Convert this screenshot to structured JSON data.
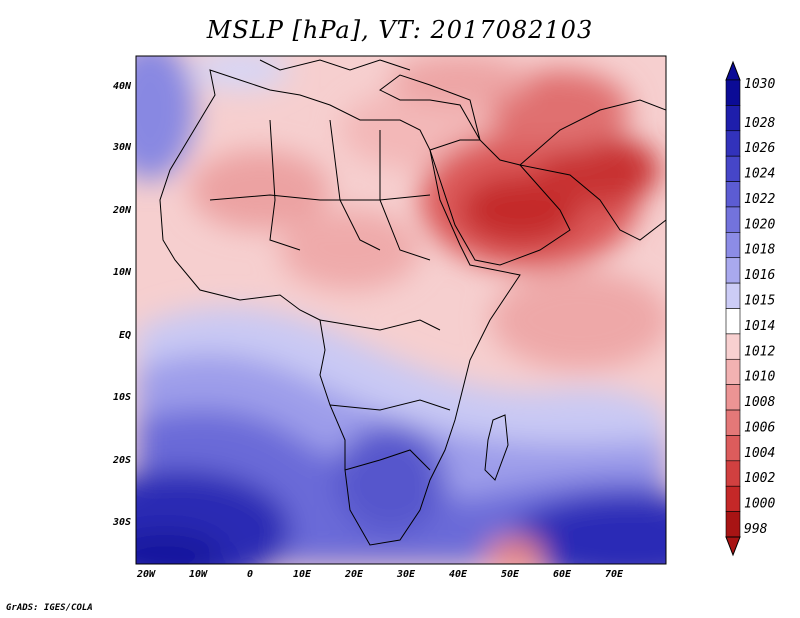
{
  "title": "MSLP [hPa], VT: 2017082103",
  "credit": "GrADS: IGES/COLA",
  "map": {
    "lon_labels": [
      "20W",
      "10W",
      "0",
      "10E",
      "20E",
      "30E",
      "40E",
      "50E",
      "60E",
      "70E"
    ],
    "lat_labels": [
      "40N",
      "30N",
      "20N",
      "10N",
      "EQ",
      "10S",
      "20S",
      "30S"
    ],
    "region": "Africa, Arabian Peninsula, Middle East and western Indian Ocean",
    "field": "Mean sea level pressure"
  },
  "colorbar": {
    "unit": "hPa",
    "labels": [
      "1030",
      "1028",
      "1026",
      "1024",
      "1022",
      "1020",
      "1018",
      "1016",
      "1015",
      "1014",
      "1012",
      "1010",
      "1008",
      "1006",
      "1004",
      "1002",
      "1000",
      "998"
    ],
    "colors": [
      "#0b0b96",
      "#1e1eab",
      "#3232bb",
      "#4646c8",
      "#5c5cd3",
      "#7373dc",
      "#8c8ce6",
      "#a9a9ee",
      "#ccccf6",
      "#ffffff",
      "#f8d0d0",
      "#f2b2b2",
      "#ec9494",
      "#e47878",
      "#dc5c5c",
      "#d14040",
      "#c42828",
      "#a81414"
    ]
  }
}
